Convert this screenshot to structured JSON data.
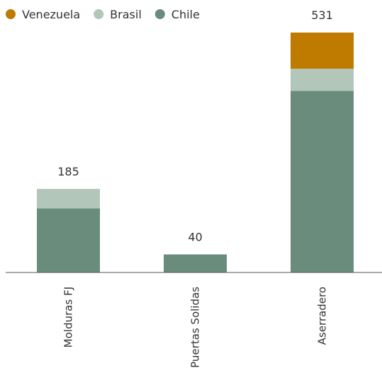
{
  "chart_data": {
    "type": "bar",
    "stacked": true,
    "title": "",
    "xlabel": "",
    "ylabel": "",
    "categories": [
      "Molduras FJ",
      "Puertas Solidas",
      "Aserradero"
    ],
    "series": [
      {
        "name": "Chile",
        "color": "#6a8c7d",
        "values": [
          142,
          40,
          402
        ]
      },
      {
        "name": "Brasil",
        "color": "#b3c6ba",
        "values": [
          43,
          0,
          49
        ]
      },
      {
        "name": "Venezuela",
        "color": "#bf7b00",
        "values": [
          0,
          0,
          80
        ]
      }
    ],
    "totals": [
      "185",
      "40",
      "531"
    ],
    "legend": {
      "placement": "top-left",
      "order": [
        "Venezuela",
        "Brasil",
        "Chile"
      ]
    },
    "ylim": [
      0,
      531
    ],
    "grid": false,
    "y_axis_visible": false,
    "category_label_orientation": "vertical"
  }
}
